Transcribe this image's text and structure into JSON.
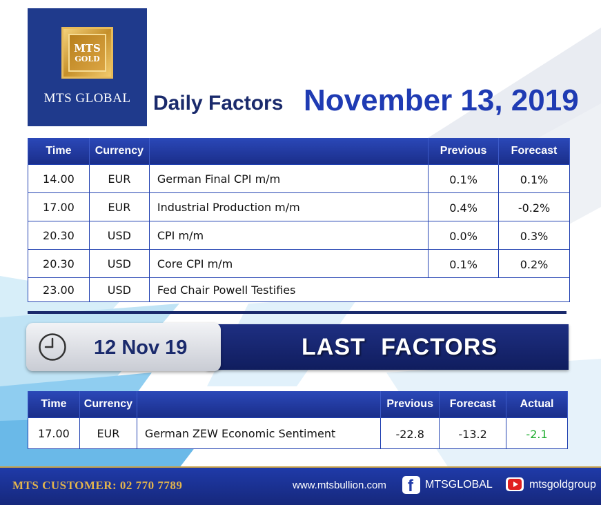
{
  "logo": {
    "badge_line1": "MTS",
    "badge_line2": "GOLD",
    "name": "MTS GLOBAL"
  },
  "headline": {
    "label": "Daily Factors",
    "date": "November 13, 2019"
  },
  "today": {
    "headers": {
      "time": "Time",
      "currency": "Currency",
      "event": "",
      "previous": "Previous",
      "forecast": "Forecast"
    },
    "rows": [
      {
        "time": "14.00",
        "currency": "EUR",
        "event": "German Final CPI m/m",
        "previous": "0.1%",
        "forecast": "0.1%"
      },
      {
        "time": "17.00",
        "currency": "EUR",
        "event": "Industrial Production  m/m",
        "previous": "0.4%",
        "forecast": "-0.2%"
      },
      {
        "time": "20.30",
        "currency": "USD",
        "event": "CPI m/m",
        "previous": "0.0%",
        "forecast": "0.3%"
      },
      {
        "time": "20.30",
        "currency": "USD",
        "event": "Core  CPI m/m",
        "previous": "0.1%",
        "forecast": "0.2%"
      },
      {
        "time": "23.00",
        "currency": "USD",
        "event": "Fed Chair Powell Testifies"
      }
    ]
  },
  "last_factors": {
    "date": "12 Nov  19",
    "title": "LAST  FACTORS",
    "headers": {
      "time": "Time",
      "currency": "Currency",
      "event": "",
      "previous": "Previous",
      "forecast": "Forecast",
      "actual": "Actual"
    },
    "rows": [
      {
        "time": "17.00",
        "currency": "EUR",
        "event": "German ZEW Economic Sentiment",
        "previous": "-22.8",
        "forecast": "-13.2",
        "actual": "-2.1"
      }
    ]
  },
  "footer": {
    "customer": "MTS CUSTOMER: 02 770 7789",
    "website": "www.mtsbullion.com",
    "facebook_icon": "f",
    "facebook": "MTSGLOBAL",
    "youtube": "mtsgoldgroup"
  },
  "colors": {
    "navy": "#1a2a6c",
    "header_blue": "#1f3aa8",
    "gold": "#e2b44d",
    "actual_positive": "#1aaa2a"
  },
  "icons": [
    "clock-icon",
    "facebook-icon",
    "youtube-icon"
  ]
}
